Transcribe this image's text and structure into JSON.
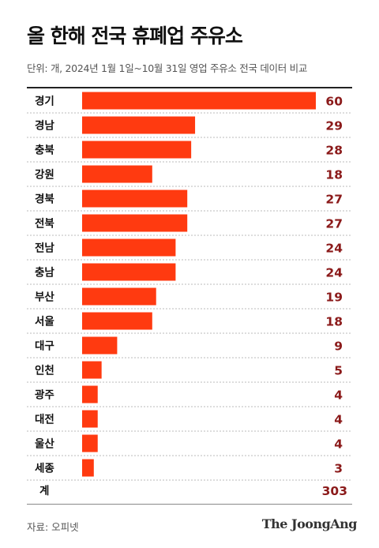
{
  "header": {
    "title": "올 한해 전국 휴폐업 주유소",
    "subtitle": "단위: 개, 2024년 1월 1일~10월 31일 영업 주유소 전국 데이터 비교"
  },
  "chart_data": {
    "type": "bar",
    "orientation": "horizontal",
    "categories": [
      "경기",
      "경남",
      "충북",
      "강원",
      "경북",
      "전북",
      "전남",
      "충남",
      "부산",
      "서울",
      "대구",
      "인천",
      "광주",
      "대전",
      "울산",
      "세종"
    ],
    "values": [
      60,
      29,
      28,
      18,
      27,
      27,
      24,
      24,
      19,
      18,
      9,
      5,
      4,
      4,
      4,
      3
    ],
    "total": {
      "label": "계",
      "value": "303"
    },
    "bar_color": "#ff3a10",
    "value_color": "#8b1a1a",
    "xlim": [
      0,
      60
    ],
    "grid": false
  },
  "footer": {
    "source": "자료: 오피넷",
    "logo": "The JoongAng"
  }
}
